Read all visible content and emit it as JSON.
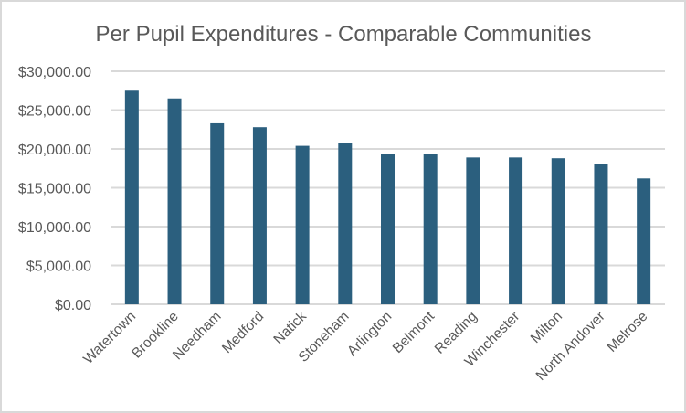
{
  "chart_data": {
    "type": "bar",
    "title": "Per Pupil Expenditures - Comparable Communities",
    "xlabel": "",
    "ylabel": "",
    "categories": [
      "Watertown",
      "Brookline",
      "Needham",
      "Medford",
      "Natick",
      "Stoneham",
      "Arlington",
      "Belmont",
      "Reading",
      "Winchester",
      "Milton",
      "North Andover",
      "Melrose"
    ],
    "values": [
      27500,
      26500,
      23300,
      22800,
      20400,
      20800,
      19400,
      19300,
      18900,
      18900,
      18800,
      18100,
      16200
    ],
    "ylim": [
      0,
      30000
    ],
    "yticks": [
      0,
      5000,
      10000,
      15000,
      20000,
      25000,
      30000
    ],
    "ytick_labels": [
      "$0.00",
      "$5,000.00",
      "$10,000.00",
      "$15,000.00",
      "$20,000.00",
      "$25,000.00",
      "$30,000.00"
    ],
    "grid": true,
    "legend": "none",
    "colors": {
      "bar": "#2b5f7e",
      "grid": "#d9d9d9",
      "text": "#595959"
    }
  }
}
